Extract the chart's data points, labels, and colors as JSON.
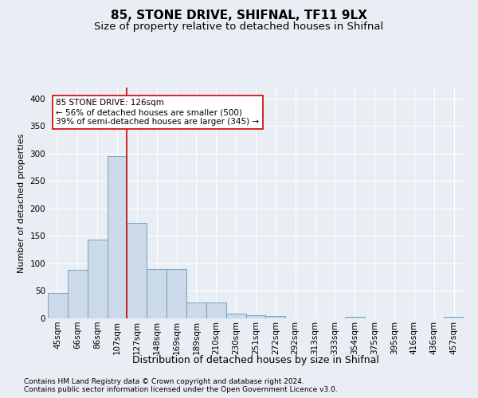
{
  "title1": "85, STONE DRIVE, SHIFNAL, TF11 9LX",
  "title2": "Size of property relative to detached houses in Shifnal",
  "xlabel": "Distribution of detached houses by size in Shifnal",
  "ylabel": "Number of detached properties",
  "categories": [
    "45sqm",
    "66sqm",
    "86sqm",
    "107sqm",
    "127sqm",
    "148sqm",
    "169sqm",
    "189sqm",
    "210sqm",
    "230sqm",
    "251sqm",
    "272sqm",
    "292sqm",
    "313sqm",
    "333sqm",
    "354sqm",
    "375sqm",
    "395sqm",
    "416sqm",
    "436sqm",
    "457sqm"
  ],
  "values": [
    47,
    88,
    143,
    295,
    174,
    90,
    90,
    29,
    29,
    8,
    6,
    4,
    0,
    0,
    0,
    3,
    0,
    0,
    0,
    0,
    3
  ],
  "bar_color": "#ccd9e8",
  "bar_edge_color": "#6699bb",
  "vline_color": "#cc0000",
  "vline_x_index": 4,
  "annotation_text": "85 STONE DRIVE: 126sqm\n← 56% of detached houses are smaller (500)\n39% of semi-detached houses are larger (345) →",
  "annotation_box_facecolor": "#ffffff",
  "annotation_box_edgecolor": "#cc0000",
  "ylim": [
    0,
    420
  ],
  "yticks": [
    0,
    50,
    100,
    150,
    200,
    250,
    300,
    350,
    400
  ],
  "footer1": "Contains HM Land Registry data © Crown copyright and database right 2024.",
  "footer2": "Contains public sector information licensed under the Open Government Licence v3.0.",
  "background_color": "#e8eef4",
  "grid_color": "#ffffff",
  "title1_fontsize": 11,
  "title2_fontsize": 9.5,
  "xlabel_fontsize": 9,
  "ylabel_fontsize": 8,
  "tick_fontsize": 7.5,
  "annotation_fontsize": 7.5,
  "footer_fontsize": 6.5
}
